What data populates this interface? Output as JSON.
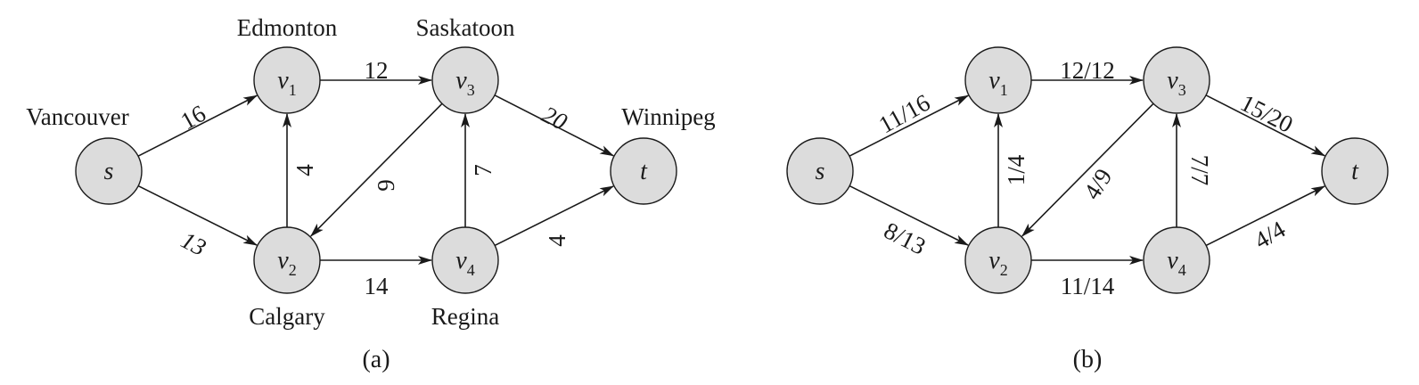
{
  "panels": [
    {
      "caption": "(a)",
      "nodes": {
        "s": {
          "base": "s",
          "sub": ""
        },
        "v1": {
          "base": "v",
          "sub": "1"
        },
        "v2": {
          "base": "v",
          "sub": "2"
        },
        "v3": {
          "base": "v",
          "sub": "3"
        },
        "v4": {
          "base": "v",
          "sub": "4"
        },
        "t": {
          "base": "t",
          "sub": ""
        }
      },
      "cities": {
        "s": "Vancouver",
        "v1": "Edmonton",
        "v2": "Calgary",
        "v3": "Saskatoon",
        "v4": "Regina",
        "t": "Winnipeg"
      },
      "edges": [
        {
          "from": "s",
          "to": "v1",
          "label": "16"
        },
        {
          "from": "s",
          "to": "v2",
          "label": "13"
        },
        {
          "from": "v1",
          "to": "v3",
          "label": "12"
        },
        {
          "from": "v2",
          "to": "v1",
          "label": "4"
        },
        {
          "from": "v3",
          "to": "v2",
          "label": "9"
        },
        {
          "from": "v2",
          "to": "v4",
          "label": "14"
        },
        {
          "from": "v4",
          "to": "v3",
          "label": "7"
        },
        {
          "from": "v3",
          "to": "t",
          "label": "20"
        },
        {
          "from": "v4",
          "to": "t",
          "label": "4"
        }
      ]
    },
    {
      "caption": "(b)",
      "nodes": {
        "s": {
          "base": "s",
          "sub": ""
        },
        "v1": {
          "base": "v",
          "sub": "1"
        },
        "v2": {
          "base": "v",
          "sub": "2"
        },
        "v3": {
          "base": "v",
          "sub": "3"
        },
        "v4": {
          "base": "v",
          "sub": "4"
        },
        "t": {
          "base": "t",
          "sub": ""
        }
      },
      "edges": [
        {
          "from": "s",
          "to": "v1",
          "label": "11/16"
        },
        {
          "from": "s",
          "to": "v2",
          "label": "8/13"
        },
        {
          "from": "v1",
          "to": "v3",
          "label": "12/12"
        },
        {
          "from": "v2",
          "to": "v1",
          "label": "1/4"
        },
        {
          "from": "v3",
          "to": "v2",
          "label": "4/9"
        },
        {
          "from": "v2",
          "to": "v4",
          "label": "11/14"
        },
        {
          "from": "v4",
          "to": "v3",
          "label": "7/7"
        },
        {
          "from": "v3",
          "to": "t",
          "label": "15/20"
        },
        {
          "from": "v4",
          "to": "t",
          "label": "4/4"
        }
      ]
    }
  ]
}
